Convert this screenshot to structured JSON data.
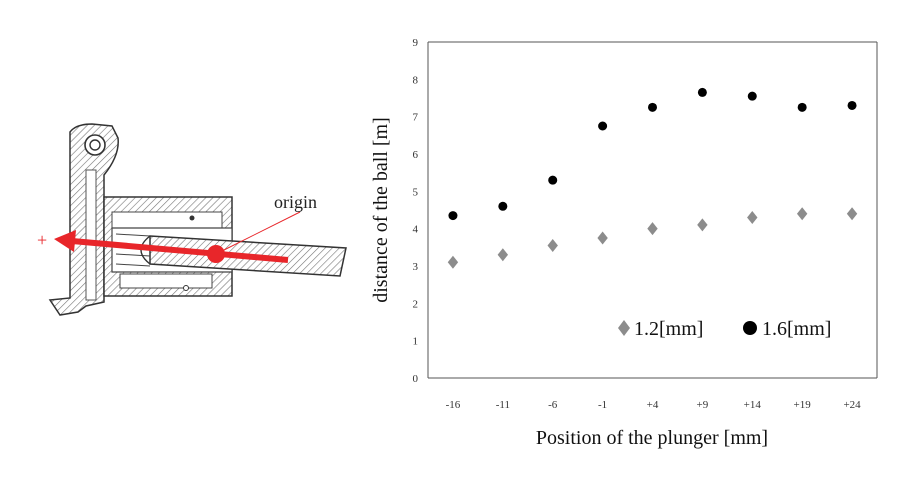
{
  "diagram": {
    "origin_label": "origin",
    "plus_label": "+",
    "arrow_color": "#e8262a"
  },
  "chart_data": {
    "type": "scatter",
    "categories": [
      "-16",
      "-11",
      "-6",
      "-1",
      "+4",
      "+9",
      "+14",
      "+19",
      "+24"
    ],
    "series": [
      {
        "name": "1.2[mm]",
        "marker": "diamond",
        "color": "#8c8c8c",
        "values": [
          3.1,
          3.3,
          3.55,
          3.75,
          4.0,
          4.1,
          4.3,
          4.4,
          4.4
        ]
      },
      {
        "name": "1.6[mm]",
        "marker": "circle",
        "color": "#000000",
        "values": [
          4.35,
          4.6,
          5.3,
          6.75,
          7.25,
          7.65,
          7.55,
          7.25,
          7.3
        ]
      }
    ],
    "xlabel": "Position of the plunger [mm]",
    "ylabel": "distance of the ball [m]",
    "ylim": [
      0,
      9
    ],
    "yticks": [
      "0",
      "1",
      "2",
      "3",
      "4",
      "5",
      "6",
      "7",
      "8",
      "9"
    ],
    "grid": false,
    "legend_position": "bottom-right"
  }
}
